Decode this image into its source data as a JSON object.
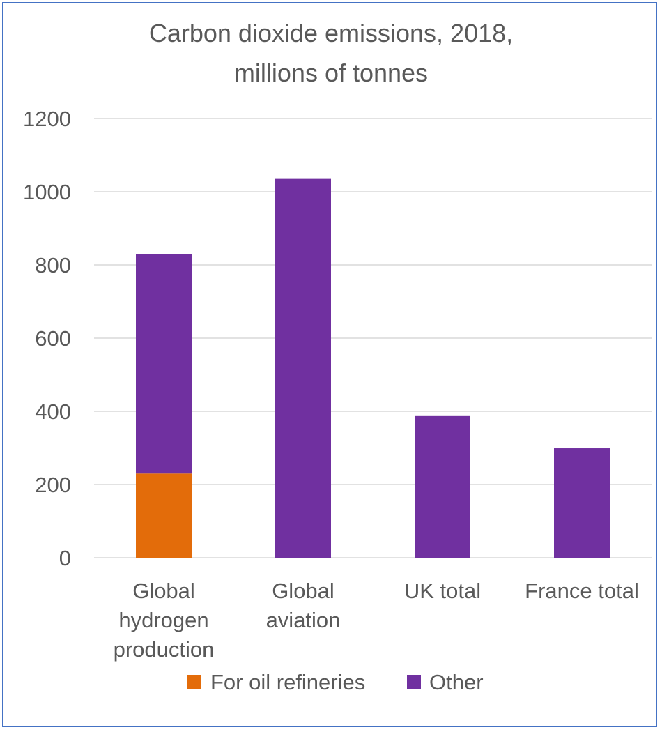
{
  "chart_data": {
    "type": "bar",
    "stacked": true,
    "title_lines": [
      "Carbon dioxide emissions, 2018,",
      "millions of tonnes"
    ],
    "xlabel": "",
    "ylabel": "",
    "ylim": [
      0,
      1200
    ],
    "y_ticks": [
      0,
      200,
      400,
      600,
      800,
      1000,
      1200
    ],
    "categories": [
      [
        "Global",
        "hydrogen",
        "production"
      ],
      [
        "Global",
        "aviation"
      ],
      [
        "UK total"
      ],
      [
        "France total"
      ]
    ],
    "series": [
      {
        "name": "For oil refineries",
        "color": "#e36c0a",
        "values": [
          230,
          0,
          0,
          0
        ]
      },
      {
        "name": "Other",
        "color": "#7030a0",
        "values": [
          600,
          1035,
          387,
          299
        ]
      }
    ],
    "grid": true,
    "legend_position": "bottom"
  }
}
